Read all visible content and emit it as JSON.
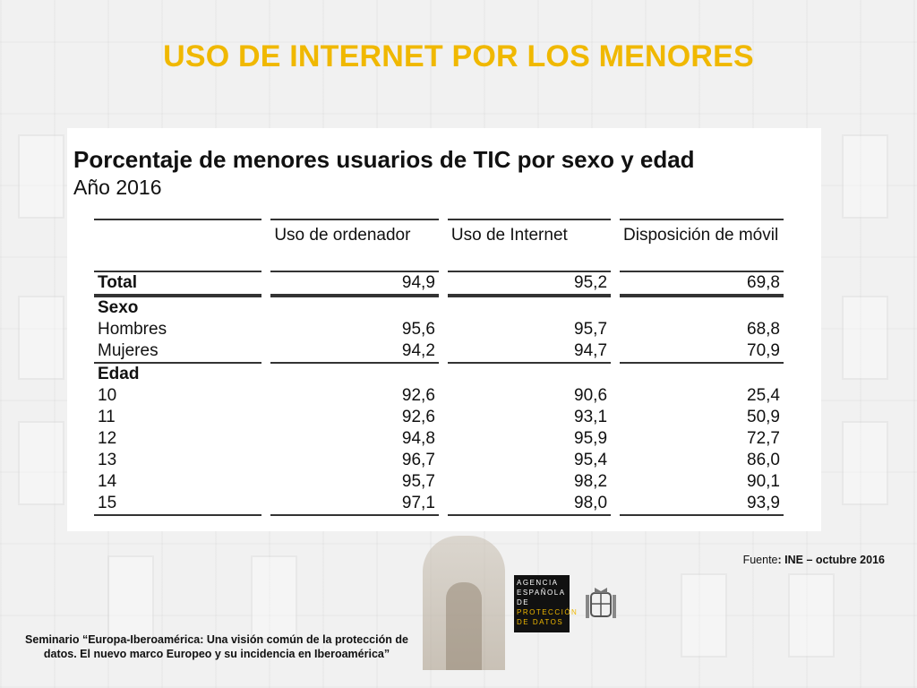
{
  "slide_title": "USO DE INTERNET POR LOS MENORES",
  "table": {
    "title": "Porcentaje de menores usuarios de TIC por sexo y edad",
    "subtitle": "Año 2016",
    "columns": [
      "",
      "Uso de ordenador",
      "Uso de Internet",
      "Disposición de móvil"
    ],
    "rows": [
      {
        "label": "Total",
        "type": "total",
        "values": [
          "94,9",
          "95,2",
          "69,8"
        ]
      },
      {
        "label": "Sexo",
        "type": "section",
        "values": [
          "",
          "",
          ""
        ]
      },
      {
        "label": "Hombres",
        "type": "row",
        "values": [
          "95,6",
          "95,7",
          "68,8"
        ]
      },
      {
        "label": "Mujeres",
        "type": "row",
        "values": [
          "94,2",
          "94,7",
          "70,9"
        ]
      },
      {
        "label": "Edad",
        "type": "section",
        "values": [
          "",
          "",
          ""
        ]
      },
      {
        "label": "10",
        "type": "row",
        "values": [
          "92,6",
          "90,6",
          "25,4"
        ]
      },
      {
        "label": "11",
        "type": "row",
        "values": [
          "92,6",
          "93,1",
          "50,9"
        ]
      },
      {
        "label": "12",
        "type": "row",
        "values": [
          "94,8",
          "95,9",
          "72,7"
        ]
      },
      {
        "label": "13",
        "type": "row",
        "values": [
          "96,7",
          "95,4",
          "86,0"
        ]
      },
      {
        "label": "14",
        "type": "row",
        "values": [
          "95,7",
          "98,2",
          "90,1"
        ]
      },
      {
        "label": "15",
        "type": "row",
        "values": [
          "97,1",
          "98,0",
          "93,9"
        ]
      }
    ]
  },
  "source": {
    "prefix": "Fuente",
    "text": ": INE – octubre 2016"
  },
  "logo": {
    "lines": [
      "AGENCIA",
      "ESPAÑOLA DE",
      "PROTECCIÓN",
      "DE DATOS"
    ]
  },
  "footer": "Seminario “Europa-Iberoamérica: Una visión común de la protección de datos. El nuevo marco Europeo y su incidencia en Iberoamérica”",
  "colors": {
    "title": "#f0b800",
    "logo_bg": "#111111"
  }
}
